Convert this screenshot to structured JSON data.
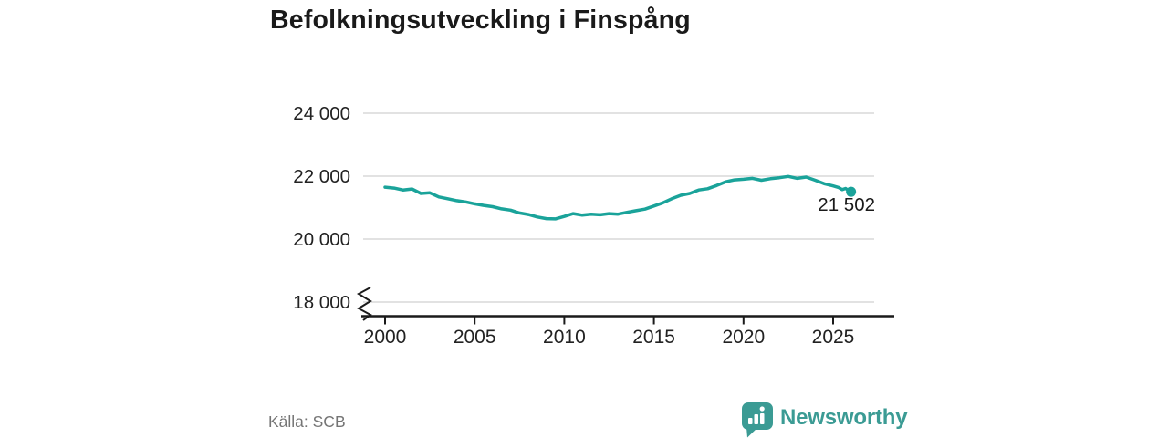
{
  "title": "Befolkningsutveckling i Finspång",
  "source": "Källa: SCB",
  "brand": {
    "name": "Newsworthy",
    "color": "#3b9b94"
  },
  "colors": {
    "background": "#ffffff",
    "title_text": "#1a1a1a",
    "axis_text": "#222222",
    "line": "#1aa39a",
    "grid": "#d9d9d9",
    "axis": "#1a1a1a",
    "source_text": "#757575",
    "brand": "#3b9b94"
  },
  "chart_data": {
    "type": "line",
    "title": "Befolkningsutveckling i Finspång",
    "xlabel": "",
    "ylabel": "",
    "x_ticks": [
      2000,
      2005,
      2010,
      2015,
      2020,
      2025
    ],
    "y_ticks": [
      {
        "value": 24000,
        "label": "24 000"
      },
      {
        "value": 22000,
        "label": "22 000"
      },
      {
        "value": 20000,
        "label": "20 000"
      },
      {
        "value": 18000,
        "label": "18 000"
      }
    ],
    "ylim": [
      18000,
      24000
    ],
    "axis_break_at_bottom": true,
    "grid": "horizontal",
    "legend": "none",
    "series": [
      {
        "name": "Befolkning",
        "x": [
          2000,
          2000.5,
          2001,
          2001.5,
          2002,
          2002.5,
          2003,
          2003.5,
          2004,
          2004.5,
          2005,
          2005.5,
          2006,
          2006.5,
          2007,
          2007.5,
          2008,
          2008.5,
          2009,
          2009.5,
          2010,
          2010.5,
          2011,
          2011.5,
          2012,
          2012.5,
          2013,
          2013.5,
          2014,
          2014.5,
          2015,
          2015.5,
          2016,
          2016.5,
          2017,
          2017.5,
          2018,
          2018.5,
          2019,
          2019.5,
          2020,
          2020.5,
          2021,
          2021.5,
          2022,
          2022.5,
          2023,
          2023.5,
          2024,
          2024.5,
          2025,
          2025.3,
          2025.5,
          2025.7,
          2025.85,
          2026
        ],
        "values": [
          21650,
          21620,
          21560,
          21590,
          21450,
          21470,
          21340,
          21280,
          21220,
          21180,
          21120,
          21070,
          21030,
          20960,
          20920,
          20830,
          20780,
          20700,
          20650,
          20640,
          20720,
          20810,
          20760,
          20790,
          20770,
          20810,
          20790,
          20850,
          20900,
          20950,
          21050,
          21150,
          21280,
          21390,
          21450,
          21560,
          21600,
          21700,
          21820,
          21880,
          21900,
          21930,
          21870,
          21920,
          21950,
          21990,
          21930,
          21970,
          21870,
          21760,
          21690,
          21640,
          21570,
          21610,
          21545,
          21502
        ]
      }
    ],
    "end_point_label": "21 502",
    "end_point_value": 21502
  }
}
